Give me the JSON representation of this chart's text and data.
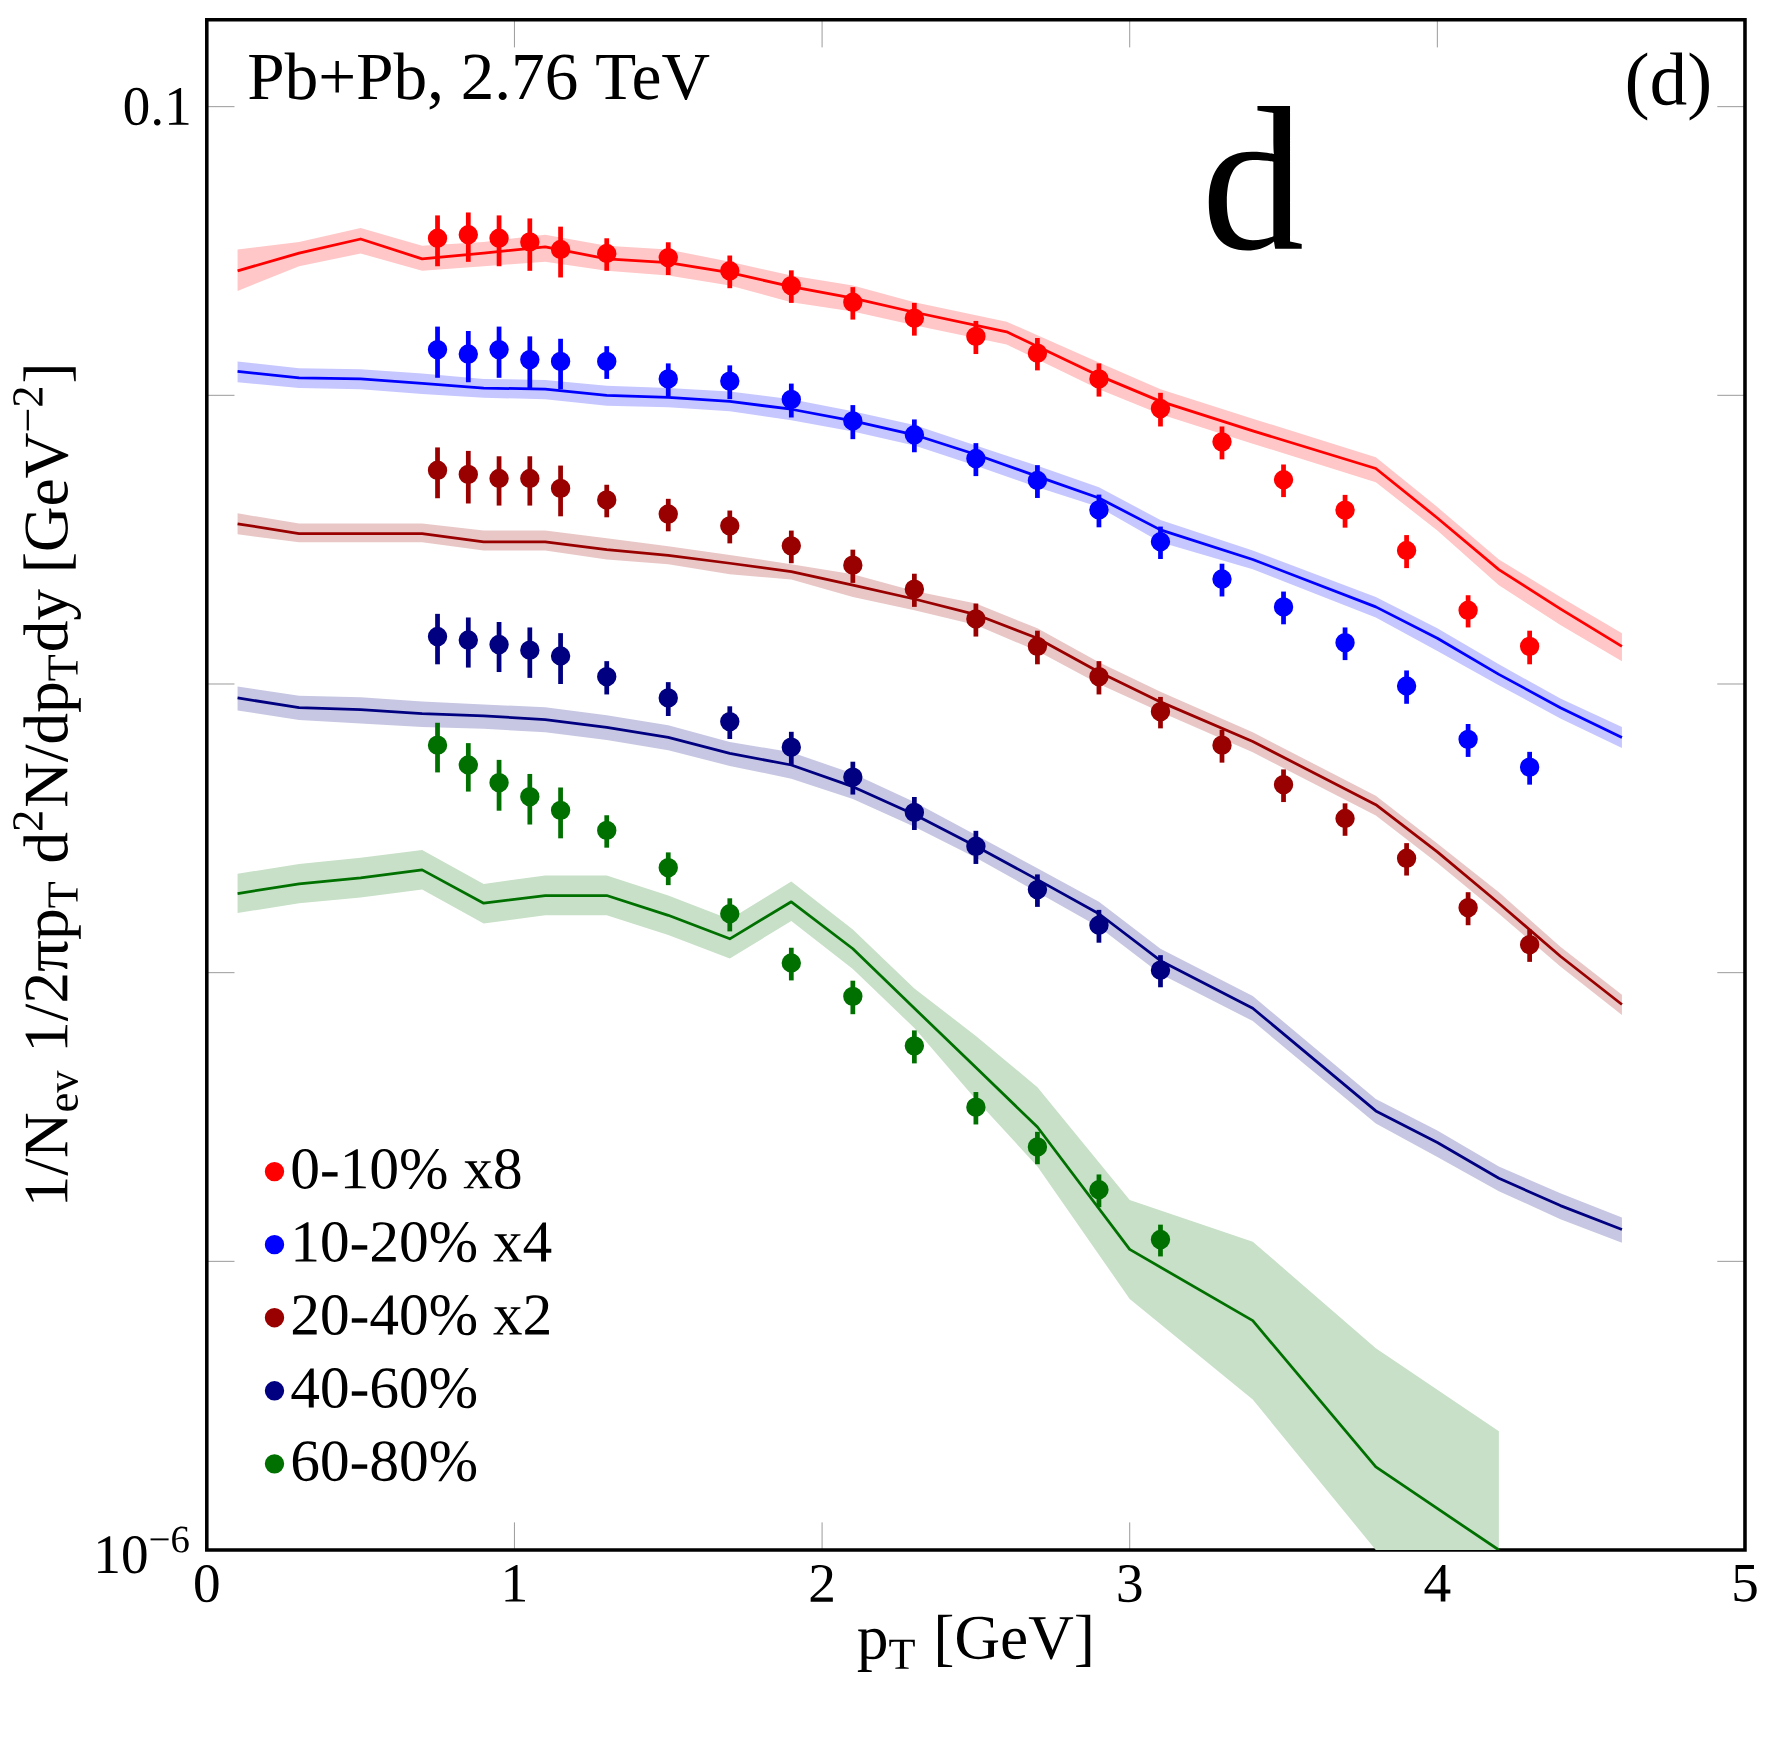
{
  "chart_data": {
    "type": "scatter",
    "xlabel": "p$_{T}$ [GeV]",
    "ylabel": "1/N$_{ev}$ 1/2πp$_{T}$ d$^{2}$N/dp$_{T}$dy [GeV$^{−2}$]",
    "annotations": [
      "Pb+Pb, 2.76 TeV",
      "(d)",
      "d"
    ],
    "log": "y",
    "xlim": [
      0,
      5
    ],
    "ylim": [
      1e-06,
      0.2
    ],
    "xticks": [
      0,
      1,
      2,
      3,
      4,
      5
    ],
    "yticks": [
      0.1,
      {
        "value": 0.01,
        "label": null
      },
      {
        "value": 0.001,
        "label": null
      },
      {
        "value": 0.0001,
        "label": null
      },
      {
        "value": 1e-05,
        "label": null
      },
      {
        "value": 1e-06,
        "label": "10$^{−6}$"
      }
    ],
    "legend": "bottom left",
    "series": [
      {
        "type": "line",
        "marker": "none",
        "color": "#ff0000",
        "x": [
          0.1,
          0.3,
          0.5,
          0.7,
          0.9,
          1.1,
          1.3,
          1.5,
          1.7,
          1.9,
          2.1,
          2.3,
          2.6,
          2.9,
          3.1,
          3.4,
          3.8,
          4.0,
          4.2,
          4.4,
          4.6
        ],
        "values": [
          0.027,
          0.0311,
          0.0348,
          0.0297,
          0.0311,
          0.0327,
          0.0297,
          0.0288,
          0.0266,
          0.0238,
          0.0217,
          0.0194,
          0.0166,
          0.0117,
          0.00953,
          0.00753,
          0.00558,
          0.00376,
          0.00249,
          0.00182,
          0.00135
        ],
        "lower": [
          0.023,
          0.028,
          0.031,
          0.027,
          0.028,
          0.029,
          0.027,
          0.026,
          0.024,
          0.021,
          0.0195,
          0.0175,
          0.015,
          0.0105,
          0.0086,
          0.0068,
          0.005,
          0.0034,
          0.0022,
          0.0016,
          0.0012
        ],
        "upper": [
          0.032,
          0.034,
          0.038,
          0.033,
          0.034,
          0.036,
          0.033,
          0.032,
          0.029,
          0.026,
          0.024,
          0.021,
          0.018,
          0.013,
          0.0105,
          0.0083,
          0.0061,
          0.0041,
          0.0027,
          0.002,
          0.0015
        ]
      },
      {
        "type": "line",
        "marker": "none",
        "color": "#0000ff",
        "x": [
          0.1,
          0.3,
          0.5,
          0.7,
          0.9,
          1.1,
          1.3,
          1.5,
          1.7,
          1.9,
          2.1,
          2.3,
          2.5,
          2.7,
          2.9,
          3.1,
          3.4,
          3.8,
          4.0,
          4.2,
          4.4,
          4.6
        ],
        "values": [
          0.0121,
          0.0115,
          0.0114,
          0.011,
          0.0106,
          0.0105,
          0.01,
          0.00984,
          0.00953,
          0.00895,
          0.00815,
          0.0073,
          0.00624,
          0.00524,
          0.00441,
          0.00342,
          0.0027,
          0.00185,
          0.00144,
          0.00108,
          0.000828,
          0.000653
        ],
        "lower": [
          0.0111,
          0.0106,
          0.0105,
          0.0101,
          0.0098,
          0.0097,
          0.0092,
          0.0091,
          0.0088,
          0.0082,
          0.0075,
          0.0067,
          0.0057,
          0.0048,
          0.0041,
          0.0031,
          0.0025,
          0.0017,
          0.0013,
          0.00099,
          0.00076,
          0.0006
        ],
        "upper": [
          0.0131,
          0.0124,
          0.0123,
          0.0119,
          0.0114,
          0.0113,
          0.0108,
          0.0106,
          0.0103,
          0.0097,
          0.0088,
          0.0079,
          0.0067,
          0.0057,
          0.0048,
          0.0037,
          0.0029,
          0.002,
          0.00156,
          0.00117,
          0.00089,
          0.00071
        ]
      },
      {
        "type": "line",
        "marker": "none",
        "color": "#990000",
        "x": [
          0.1,
          0.3,
          0.5,
          0.7,
          0.9,
          1.1,
          1.3,
          1.5,
          1.7,
          1.9,
          2.1,
          2.3,
          2.5,
          2.7,
          2.9,
          3.1,
          3.4,
          3.8,
          4.0,
          4.2,
          4.4,
          4.6
        ],
        "values": [
          0.00359,
          0.00332,
          0.00332,
          0.00332,
          0.00311,
          0.00311,
          0.00292,
          0.00279,
          0.00262,
          0.00245,
          0.0022,
          0.00197,
          0.00174,
          0.00144,
          0.0011,
          0.000867,
          0.000632,
          0.000382,
          0.000262,
          0.000174,
          0.000114,
          7.76e-05
        ],
        "lower": [
          0.0033,
          0.0031,
          0.0031,
          0.0031,
          0.0029,
          0.0029,
          0.0027,
          0.0026,
          0.0024,
          0.0023,
          0.002,
          0.0018,
          0.0016,
          0.0013,
          0.001,
          0.0008,
          0.00058,
          0.00035,
          0.00024,
          0.00016,
          0.000105,
          7.14e-05
        ],
        "upper": [
          0.0039,
          0.0036,
          0.0036,
          0.0036,
          0.0034,
          0.0034,
          0.0032,
          0.003,
          0.0028,
          0.0026,
          0.0024,
          0.0021,
          0.0019,
          0.00156,
          0.00119,
          0.00094,
          0.00068,
          0.00041,
          0.00028,
          0.00019,
          0.000123,
          8.38e-05
        ]
      },
      {
        "type": "line",
        "marker": "none",
        "color": "#000080",
        "x": [
          0.1,
          0.3,
          0.5,
          0.7,
          0.9,
          1.1,
          1.3,
          1.5,
          1.7,
          1.9,
          2.1,
          2.3,
          2.5,
          2.7,
          2.9,
          3.1,
          3.4,
          3.8,
          4.0,
          4.2,
          4.4,
          4.6
        ],
        "values": [
          0.000895,
          0.000828,
          0.000815,
          0.000789,
          0.000776,
          0.000753,
          0.000707,
          0.000653,
          0.000575,
          0.000524,
          0.000441,
          0.000353,
          0.000274,
          0.00021,
          0.00016,
          0.00011,
          7.53e-05,
          3.32e-05,
          2.58e-05,
          1.94e-05,
          1.56e-05,
          1.29e-05
        ],
        "lower": [
          0.00081,
          0.00075,
          0.00073,
          0.00071,
          0.0007,
          0.00068,
          0.00064,
          0.00059,
          0.00052,
          0.00047,
          0.0004,
          0.00032,
          0.00025,
          0.00019,
          0.000144,
          9.9e-05,
          6.8e-05,
          3e-05,
          2.3e-05,
          1.75e-05,
          1.4e-05,
          1.16e-05
        ],
        "upper": [
          0.00098,
          0.00091,
          0.0009,
          0.00087,
          0.00085,
          0.00083,
          0.00078,
          0.00072,
          0.00063,
          0.00058,
          0.00049,
          0.00039,
          0.0003,
          0.00023,
          0.000176,
          0.000121,
          8.3e-05,
          3.65e-05,
          2.84e-05,
          2.13e-05,
          1.72e-05,
          1.42e-05
        ]
      },
      {
        "type": "line",
        "marker": "none",
        "color": "#007000",
        "x": [
          0.1,
          0.3,
          0.5,
          0.7,
          0.9,
          1.1,
          1.3,
          1.5,
          1.7,
          1.9,
          2.1,
          2.3,
          2.5,
          2.7,
          3.0,
          3.4,
          3.8,
          4.2
        ],
        "values": [
          0.000188,
          0.000203,
          0.000213,
          0.000227,
          0.000174,
          0.000185,
          0.000185,
          0.000158,
          0.000131,
          0.000176,
          0.000121,
          7.53e-05,
          4.69e-05,
          2.92e-05,
          1.1e-05,
          6.23e-06,
          1.94e-06,
          1e-06
        ],
        "lower": [
          0.000161,
          0.000174,
          0.000182,
          0.000194,
          0.000148,
          0.000158,
          0.000158,
          0.000135,
          0.000112,
          0.000151,
          0.000103,
          6.43e-05,
          3.64e-05,
          2.13e-05,
          7.41e-06,
          3.32e-06,
          1e-06,
          1e-06
        ],
        "upper": [
          0.00022,
          0.000238,
          0.00025,
          0.000266,
          0.000203,
          0.000217,
          0.000217,
          0.000185,
          0.000153,
          0.000207,
          0.000141,
          8.81e-05,
          6.04e-05,
          4.01e-05,
          1.63e-05,
          1.17e-05,
          5e-06,
          2.58e-06
        ]
      },
      {
        "name": "0-10% x8",
        "marker": "circle",
        "color": "#ff0000",
        "x": [
          0.75,
          0.85,
          0.95,
          1.05,
          1.15,
          1.3,
          1.5,
          1.7,
          1.9,
          2.1,
          2.3,
          2.5,
          2.7,
          2.9,
          3.1,
          3.3,
          3.5,
          3.7,
          3.9,
          4.1,
          4.3
        ],
        "values": [
          0.035,
          0.036,
          0.035,
          0.034,
          0.032,
          0.031,
          0.03,
          0.027,
          0.024,
          0.021,
          0.0185,
          0.016,
          0.014,
          0.0114,
          0.009,
          0.0069,
          0.0051,
          0.004,
          0.0029,
          0.0018,
          0.00135
        ],
        "errors": [
          0.007,
          0.007,
          0.007,
          0.007,
          0.0064,
          0.004,
          0.0039,
          0.0035,
          0.0031,
          0.0027,
          0.0024,
          0.0021,
          0.0018,
          0.0015,
          0.0012,
          0.0009,
          0.00066,
          0.00052,
          0.00038,
          0.00023,
          0.00018
        ]
      },
      {
        "name": "10-20% x4",
        "marker": "circle",
        "color": "#0000ff",
        "x": [
          0.75,
          0.85,
          0.95,
          1.05,
          1.15,
          1.3,
          1.5,
          1.7,
          1.9,
          2.1,
          2.3,
          2.5,
          2.7,
          2.9,
          3.1,
          3.3,
          3.5,
          3.7,
          3.9,
          4.1,
          4.3
        ],
        "values": [
          0.0144,
          0.0139,
          0.0144,
          0.0133,
          0.0131,
          0.0131,
          0.0114,
          0.0112,
          0.00968,
          0.00815,
          0.0073,
          0.00604,
          0.00507,
          0.00401,
          0.00311,
          0.00231,
          0.00185,
          0.00139,
          0.000984,
          0.000643,
          0.000515
        ],
        "errors": [
          0.0029,
          0.0028,
          0.0029,
          0.0027,
          0.0026,
          0.0017,
          0.0015,
          0.0015,
          0.0013,
          0.0011,
          0.00095,
          0.00079,
          0.00066,
          0.00052,
          0.0004,
          0.0003,
          0.00024,
          0.00018,
          0.00013,
          8.4e-05,
          6.7e-05
        ]
      },
      {
        "name": "20-40% x2",
        "marker": "circle",
        "color": "#990000",
        "x": [
          0.75,
          0.85,
          0.95,
          1.05,
          1.15,
          1.3,
          1.5,
          1.7,
          1.9,
          2.1,
          2.3,
          2.5,
          2.7,
          2.9,
          3.1,
          3.3,
          3.5,
          3.7,
          3.9,
          4.1,
          4.3
        ],
        "values": [
          0.0055,
          0.00532,
          0.00515,
          0.00515,
          0.00476,
          0.00434,
          0.00388,
          0.00353,
          0.00301,
          0.00258,
          0.00213,
          0.00168,
          0.00135,
          0.00106,
          0.000802,
          0.000614,
          0.000448,
          0.000342,
          0.000249,
          0.000168,
          0.000125
        ],
        "errors": [
          0.0011,
          0.0011,
          0.001,
          0.001,
          0.00095,
          0.00056,
          0.0005,
          0.00046,
          0.00039,
          0.00034,
          0.00028,
          0.00022,
          0.00018,
          0.00014,
          0.0001,
          8e-05,
          5.8e-05,
          4.4e-05,
          3.2e-05,
          2.2e-05,
          1.6e-05
        ]
      },
      {
        "name": "40-60%",
        "marker": "circle",
        "color": "#000080",
        "x": [
          0.75,
          0.85,
          0.95,
          1.05,
          1.15,
          1.3,
          1.5,
          1.7,
          1.9,
          2.1,
          2.3,
          2.5,
          2.7,
          2.9,
          3.1
        ],
        "values": [
          0.00146,
          0.00142,
          0.00137,
          0.00131,
          0.00125,
          0.00106,
          0.000895,
          0.000741,
          0.000604,
          0.000476,
          0.000359,
          0.000274,
          0.000194,
          0.000146,
          0.000102
        ],
        "errors": [
          0.00029,
          0.00028,
          0.00027,
          0.00026,
          0.00025,
          0.00014,
          0.00012,
          9.6e-05,
          7.9e-05,
          6.2e-05,
          4.7e-05,
          3.6e-05,
          2.5e-05,
          1.9e-05,
          1.3e-05
        ]
      },
      {
        "name": "60-80%",
        "marker": "circle",
        "color": "#007000",
        "x": [
          0.75,
          0.85,
          0.95,
          1.05,
          1.15,
          1.3,
          1.5,
          1.7,
          1.9,
          2.1,
          2.3,
          2.5,
          2.7,
          2.9,
          3.1
        ],
        "values": [
          0.000614,
          0.000524,
          0.000455,
          0.000407,
          0.000365,
          0.000311,
          0.000231,
          0.00016,
          0.000108,
          8.28e-05,
          5.58e-05,
          3.42e-05,
          2.49e-05,
          1.77e-05,
          1.19e-05
        ],
        "errors": [
          0.00012,
          0.0001,
          9.1e-05,
          8.1e-05,
          7.3e-05,
          4e-05,
          3e-05,
          2.1e-05,
          1.4e-05,
          1.1e-05,
          7.3e-06,
          4.4e-06,
          3.2e-06,
          2.3e-06,
          1.5e-06
        ]
      }
    ]
  }
}
